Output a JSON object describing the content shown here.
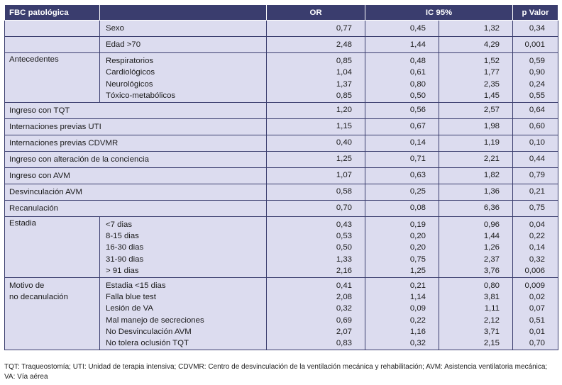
{
  "header": {
    "col1": "FBC patológica",
    "col2": "OR",
    "col3": "IC 95%",
    "col4": "p Valor"
  },
  "rows": [
    {
      "label": "",
      "sub": [
        "Sexo"
      ],
      "or": [
        "0,77"
      ],
      "lo": [
        "0,45"
      ],
      "hi": [
        "1,32"
      ],
      "p": [
        "0,34"
      ]
    },
    {
      "label": "",
      "sub": [
        "Edad >70"
      ],
      "or": [
        "2,48"
      ],
      "lo": [
        "1,44"
      ],
      "hi": [
        "4,29"
      ],
      "p": [
        "0,001"
      ]
    },
    {
      "label": "Antecedentes",
      "sub": [
        "Respiratorios",
        "Cardiológicos",
        "Neurológicos",
        "Tóxico-metabólicos"
      ],
      "or": [
        "0,85",
        "1,04",
        "1,37",
        "0,85"
      ],
      "lo": [
        "0,48",
        "0,61",
        "0,80",
        "0,50"
      ],
      "hi": [
        "1,52",
        "1,77",
        "2,35",
        "1,45"
      ],
      "p": [
        "0,59",
        "0,90",
        "0,24",
        "0,55"
      ]
    },
    {
      "label": "Ingreso con TQT",
      "sub": [],
      "or": [
        "1,20"
      ],
      "lo": [
        "0,56"
      ],
      "hi": [
        "2,57"
      ],
      "p": [
        "0,64"
      ]
    },
    {
      "label": "Internaciones previas UTI",
      "sub": [],
      "or": [
        "1,15"
      ],
      "lo": [
        "0,67"
      ],
      "hi": [
        "1,98"
      ],
      "p": [
        "0,60"
      ]
    },
    {
      "label": "Internaciones previas CDVMR",
      "sub": [],
      "or": [
        "0,40"
      ],
      "lo": [
        "0,14"
      ],
      "hi": [
        "1,19"
      ],
      "p": [
        "0,10"
      ]
    },
    {
      "label": "Ingreso con alteración de la conciencia",
      "sub": [],
      "or": [
        "1,25"
      ],
      "lo": [
        "0,71"
      ],
      "hi": [
        "2,21"
      ],
      "p": [
        "0,44"
      ]
    },
    {
      "label": "Ingreso con AVM",
      "sub": [],
      "or": [
        "1,07"
      ],
      "lo": [
        "0,63"
      ],
      "hi": [
        "1,82"
      ],
      "p": [
        "0,79"
      ]
    },
    {
      "label": "Desvinculación AVM",
      "sub": [],
      "or": [
        "0,58"
      ],
      "lo": [
        "0,25"
      ],
      "hi": [
        "1,36"
      ],
      "p": [
        "0,21"
      ]
    },
    {
      "label": "Recanulación",
      "sub": [],
      "or": [
        "0,70"
      ],
      "lo": [
        "0,08"
      ],
      "hi": [
        "6,36"
      ],
      "p": [
        "0,75"
      ]
    },
    {
      "label": "Estadia",
      "sub": [
        "<7 dias",
        "8-15 dias",
        "16-30 dias",
        "31-90 dias",
        "> 91 dias"
      ],
      "or": [
        "0,43",
        "0,53",
        "0,50",
        "1,33",
        "2,16"
      ],
      "lo": [
        "0,19",
        "0,20",
        "0,20",
        "0,75",
        "1,25"
      ],
      "hi": [
        "0,96",
        "1,44",
        "1,26",
        "2,37",
        "3,76"
      ],
      "p": [
        "0,04",
        "0,22",
        "0,14",
        "0,32",
        "0,006"
      ]
    },
    {
      "label": [
        "Motivo de",
        "no decanulación"
      ],
      "sub": [
        "Estadia <15 dias",
        "Falla blue test",
        "Lesión de VA",
        "Mal manejo de secreciones",
        "No Desvinculación AVM",
        "No tolera oclusión TQT"
      ],
      "or": [
        "0,41",
        "2,08",
        "0,32",
        "0,69",
        "2,07",
        "0,83"
      ],
      "lo": [
        "0,21",
        "1,14",
        "0,09",
        "0,22",
        "1,16",
        "0,32"
      ],
      "hi": [
        "0,80",
        "3,81",
        "1,11",
        "2,12",
        "3,71",
        "2,15"
      ],
      "p": [
        "0,009",
        "0,02",
        "0,07",
        "0,51",
        "0,01",
        "0,70"
      ]
    }
  ],
  "footnote": "TQT: Traqueostomía; UTI: Unidad de terapia intensiva; CDVMR: Centro de desvinculación de la ventilación mecánica y rehabilitación; AVM: Asistencia ventilatoria mecánica; VA: Vía aérea"
}
